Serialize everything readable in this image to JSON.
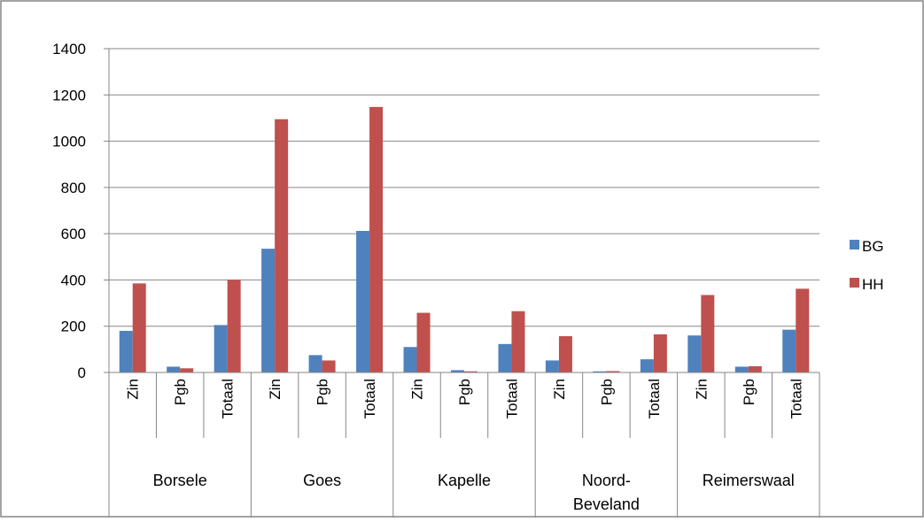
{
  "chart_data": {
    "type": "bar",
    "title": "",
    "xlabel": "",
    "ylabel": "",
    "ylim": [
      0,
      1400
    ],
    "yticks": [
      0,
      200,
      400,
      600,
      800,
      1000,
      1200,
      1400
    ],
    "grid": true,
    "legend_position": "right",
    "groups": [
      {
        "label": [
          "Borsele"
        ],
        "categories": [
          "Zin",
          "Pgb",
          "Totaal"
        ]
      },
      {
        "label": [
          "Goes"
        ],
        "categories": [
          "Zin",
          "Pgb",
          "Totaal"
        ]
      },
      {
        "label": [
          "Kapelle"
        ],
        "categories": [
          "Zin",
          "Pgb",
          "Totaal"
        ]
      },
      {
        "label": [
          "Noord-",
          "Beveland"
        ],
        "categories": [
          "Zin",
          "Pgb",
          "Totaal"
        ]
      },
      {
        "label": [
          "Reimerswaal"
        ],
        "categories": [
          "Zin",
          "Pgb",
          "Totaal"
        ]
      }
    ],
    "series": [
      {
        "name": "BG",
        "color": "#4f81bd",
        "values": [
          180,
          25,
          205,
          535,
          75,
          612,
          110,
          10,
          123,
          52,
          5,
          57,
          160,
          25,
          185
        ]
      },
      {
        "name": "HH",
        "color": "#c0504d",
        "values": [
          385,
          18,
          400,
          1095,
          52,
          1148,
          258,
          5,
          265,
          157,
          6,
          165,
          335,
          27,
          362
        ]
      }
    ]
  }
}
